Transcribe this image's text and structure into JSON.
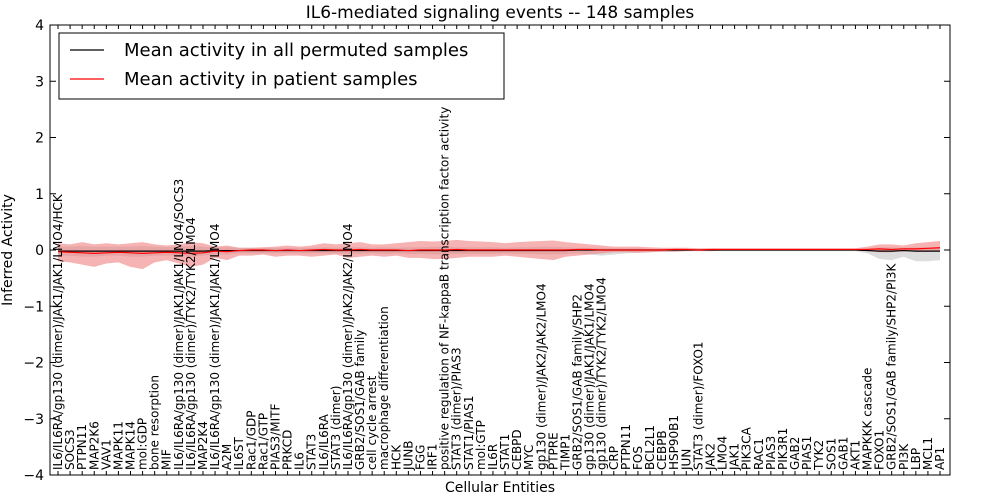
{
  "chart_data": {
    "type": "line",
    "title": "IL6-mediated signaling events -- 148 samples",
    "xlabel": "Cellular Entities",
    "ylabel": "Inferred Activity",
    "ylim": [
      -4,
      4
    ],
    "yticks": [
      -4,
      -3,
      -2,
      -1,
      0,
      1,
      2,
      3,
      4
    ],
    "ytick_labels": [
      "−4",
      "−3",
      "−2",
      "−1",
      "0",
      "1",
      "2",
      "3",
      "4"
    ],
    "legend": {
      "position": "top-left",
      "entries": [
        {
          "label": "Mean activity in all permuted samples",
          "color": "#000000"
        },
        {
          "label": "Mean activity in patient samples",
          "color": "#ff0000"
        }
      ]
    },
    "colors": {
      "permuted": "#000000",
      "patient": "#ff0000",
      "patient_band": "#f08080",
      "permuted_band": "#c0c0c0"
    },
    "categories": [
      "IL6/IL6RA/gp130 (dimer)/JAK1/JAK1/LMO4/HCK",
      "SOCS3",
      "PTPN11",
      "MAP2K6",
      "VAV1",
      "MAPK11",
      "MAPK14",
      "mol:GDP",
      "bone resorption",
      "MIF",
      "IL6/IL6RA/gp130 (dimer)/JAK1/JAK1/LMO4/SOCS3",
      "IL6/IL6RA/gp130 (dimer)/TYK2/TYK2/LMO4",
      "MAP2K4",
      "IL6/IL6RA/gp130 (dimer)/JAK1/JAK1/LMO4",
      "A2M",
      "IL6ST",
      "Rac1/GDP",
      "Rac1/GTP",
      "PIAS3/MITF",
      "PRKCD",
      "IL6",
      "STAT3",
      "IL6/IL6RA",
      "STAT3 (dimer)",
      "IL6/IL6RA/gp130 (dimer)/JAK2/JAK2/LMO4",
      "GRB2/SOS1/GAB family",
      "cell cycle arrest",
      "macrophage differentiation",
      "HCK",
      "JUNB",
      "FGG",
      "IRF1",
      "positive regulation of NF-kappaB transcription factor activity",
      "STAT3 (dimer)/PIAS3",
      "STAT1/PIAS1",
      "mol:GTP",
      "IL6R",
      "STAT1",
      "CEBPD",
      "MYC",
      "gp130 (dimer)/JAK2/JAK2/LMO4",
      "PTPRE",
      "TIMP1",
      "GRB2/SOS1/GAB family/SHP2",
      "gp130 (dimer)/JAK1/JAK1/LMO4",
      "gp130 (dimer)/TYK2/TYK2/LMO4",
      "CRP",
      "PTPN11",
      "FOS",
      "BCL2L1",
      "CEBPB",
      "HSP90B1",
      "JUN",
      "STAT3 (dimer)/FOXO1",
      "JAK2",
      "LMO4",
      "JAK1",
      "PIK3CA",
      "RAC1",
      "PIAS3",
      "PIK3R1",
      "GAB2",
      "PIAS1",
      "TYK2",
      "SOS1",
      "GAB1",
      "AKT1",
      "MAPKKK cascade",
      "FOXO1",
      "GRB2/SOS1/GAB family/SHP2/PI3K",
      "PI3K",
      "LBP",
      "MCL1",
      "AP1"
    ],
    "series": [
      {
        "name": "Mean activity in patient samples",
        "values": [
          -0.03,
          -0.04,
          -0.05,
          -0.06,
          -0.05,
          -0.04,
          -0.05,
          -0.06,
          -0.05,
          -0.04,
          -0.05,
          -0.06,
          -0.05,
          -0.02,
          -0.03,
          -0.01,
          0.0,
          0.0,
          -0.01,
          0.0,
          -0.01,
          0.0,
          0.01,
          0.0,
          0.0,
          0.01,
          0.0,
          0.0,
          0.0,
          -0.01,
          0.0,
          0.0,
          0.0,
          0.01,
          0.0,
          0.0,
          0.0,
          0.0,
          0.0,
          0.0,
          0.0,
          0.0,
          0.0,
          0.01,
          0.01,
          0.0,
          0.0,
          0.0,
          0.0,
          0.0,
          0.0,
          0.01,
          0.01,
          0.0,
          0.01,
          0.01,
          0.01,
          0.01,
          0.01,
          0.01,
          0.01,
          0.01,
          0.01,
          0.01,
          0.01,
          0.01,
          0.01,
          0.01,
          0.02,
          0.01,
          0.02,
          0.02,
          0.03,
          0.04
        ],
        "lower": [
          -0.2,
          -0.22,
          -0.26,
          -0.3,
          -0.24,
          -0.22,
          -0.3,
          -0.34,
          -0.22,
          -0.18,
          -0.24,
          -0.3,
          -0.26,
          -0.14,
          -0.18,
          -0.1,
          -0.1,
          -0.08,
          -0.12,
          -0.1,
          -0.1,
          -0.12,
          -0.1,
          -0.08,
          -0.14,
          -0.12,
          -0.1,
          -0.12,
          -0.1,
          -0.14,
          -0.14,
          -0.16,
          -0.16,
          -0.14,
          -0.12,
          -0.12,
          -0.12,
          -0.1,
          -0.12,
          -0.14,
          -0.16,
          -0.18,
          -0.12,
          -0.1,
          -0.08,
          -0.06,
          -0.04,
          -0.04,
          -0.05,
          -0.04,
          -0.03,
          -0.03,
          -0.02,
          -0.02,
          -0.02,
          -0.01,
          -0.01,
          -0.01,
          -0.01,
          -0.01,
          -0.01,
          -0.01,
          -0.01,
          -0.01,
          -0.01,
          -0.01,
          -0.01,
          -0.02,
          -0.04,
          -0.04,
          -0.02,
          -0.03,
          -0.03,
          -0.02
        ],
        "upper": [
          0.12,
          0.1,
          0.14,
          0.1,
          0.12,
          0.1,
          0.12,
          0.14,
          0.1,
          0.08,
          0.1,
          0.14,
          0.12,
          0.06,
          0.08,
          0.04,
          0.04,
          0.05,
          0.06,
          0.08,
          0.06,
          0.08,
          0.12,
          0.1,
          0.12,
          0.14,
          0.1,
          0.1,
          0.12,
          0.14,
          0.16,
          0.15,
          0.16,
          0.18,
          0.16,
          0.15,
          0.14,
          0.12,
          0.14,
          0.15,
          0.16,
          0.17,
          0.14,
          0.12,
          0.1,
          0.08,
          0.06,
          0.06,
          0.06,
          0.05,
          0.04,
          0.04,
          0.04,
          0.03,
          0.03,
          0.03,
          0.03,
          0.03,
          0.03,
          0.03,
          0.03,
          0.03,
          0.03,
          0.03,
          0.03,
          0.03,
          0.03,
          0.06,
          0.1,
          0.1,
          0.08,
          0.12,
          0.14,
          0.16
        ]
      },
      {
        "name": "Mean activity in all permuted samples",
        "values": [
          -0.02,
          -0.02,
          -0.02,
          -0.02,
          -0.02,
          -0.02,
          -0.02,
          -0.02,
          -0.02,
          -0.02,
          -0.02,
          -0.02,
          -0.02,
          -0.01,
          -0.01,
          -0.01,
          -0.01,
          -0.01,
          -0.01,
          -0.01,
          -0.01,
          -0.01,
          -0.01,
          -0.01,
          -0.01,
          -0.01,
          -0.01,
          -0.01,
          -0.01,
          -0.01,
          -0.01,
          -0.01,
          -0.01,
          -0.01,
          -0.01,
          -0.01,
          -0.01,
          -0.01,
          -0.01,
          -0.01,
          -0.01,
          -0.01,
          -0.01,
          0.0,
          0.0,
          0.0,
          0.0,
          0.0,
          0.0,
          0.0,
          0.0,
          0.0,
          0.0,
          0.0,
          0.0,
          0.0,
          0.0,
          0.0,
          0.0,
          0.0,
          0.0,
          0.0,
          0.0,
          0.0,
          0.0,
          0.0,
          0.0,
          -0.01,
          -0.02,
          -0.02,
          -0.01,
          -0.02,
          -0.02,
          -0.02
        ],
        "lower": [
          -0.1,
          -0.1,
          -0.12,
          -0.12,
          -0.1,
          -0.1,
          -0.12,
          -0.12,
          -0.1,
          -0.1,
          -0.1,
          -0.12,
          -0.1,
          -0.08,
          -0.08,
          -0.06,
          -0.06,
          -0.06,
          -0.06,
          -0.06,
          -0.06,
          -0.06,
          -0.06,
          -0.06,
          -0.07,
          -0.07,
          -0.06,
          -0.07,
          -0.06,
          -0.07,
          -0.07,
          -0.08,
          -0.08,
          -0.07,
          -0.07,
          -0.07,
          -0.07,
          -0.06,
          -0.07,
          -0.07,
          -0.08,
          -0.08,
          -0.07,
          -0.06,
          -0.08,
          -0.1,
          -0.08,
          -0.06,
          -0.05,
          -0.04,
          -0.03,
          -0.03,
          -0.02,
          -0.02,
          -0.02,
          -0.02,
          -0.02,
          -0.02,
          -0.02,
          -0.02,
          -0.02,
          -0.02,
          -0.02,
          -0.02,
          -0.02,
          -0.02,
          -0.02,
          -0.06,
          -0.16,
          -0.18,
          -0.12,
          -0.2,
          -0.2,
          -0.18
        ],
        "upper": [
          0.06,
          0.06,
          0.07,
          0.06,
          0.06,
          0.06,
          0.06,
          0.07,
          0.06,
          0.05,
          0.06,
          0.07,
          0.06,
          0.05,
          0.05,
          0.04,
          0.04,
          0.04,
          0.04,
          0.04,
          0.04,
          0.04,
          0.05,
          0.04,
          0.05,
          0.05,
          0.04,
          0.05,
          0.04,
          0.05,
          0.05,
          0.06,
          0.06,
          0.05,
          0.05,
          0.05,
          0.05,
          0.04,
          0.05,
          0.05,
          0.06,
          0.06,
          0.05,
          0.04,
          0.04,
          0.04,
          0.03,
          0.03,
          0.03,
          0.02,
          0.02,
          0.02,
          0.02,
          0.02,
          0.02,
          0.02,
          0.02,
          0.02,
          0.02,
          0.02,
          0.02,
          0.02,
          0.02,
          0.02,
          0.02,
          0.02,
          0.02,
          0.03,
          0.05,
          0.05,
          0.04,
          0.05,
          0.05,
          0.05
        ]
      }
    ]
  }
}
